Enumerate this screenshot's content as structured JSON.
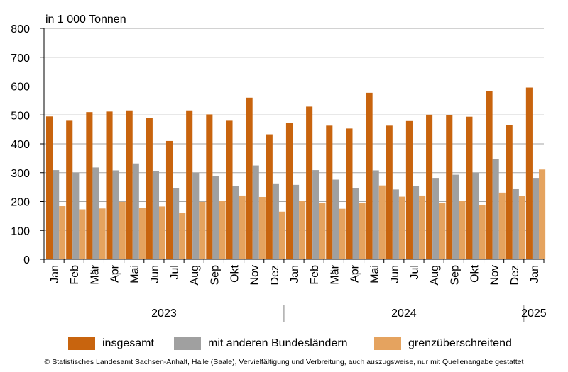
{
  "unit_label": "in 1 000 Tonnen",
  "footer": "© Statistisches Landesamt Sachsen-Anhalt, Halle (Saale), Vervielfältigung und Verbreitung, auch auszugsweise, nur mit Quellenangabe gestattet",
  "colors": {
    "insgesamt": "#c8640e",
    "bundeslaender": "#a0a0a0",
    "grenz": "#e5a35f"
  },
  "chart_data": {
    "type": "bar",
    "ylim": [
      0,
      800
    ],
    "yticks": [
      0,
      100,
      200,
      300,
      400,
      500,
      600,
      700,
      800
    ],
    "grid": true,
    "legend_position": "bottom",
    "categories": [
      "Jan",
      "Feb",
      "Mär",
      "Apr",
      "Mai",
      "Jun",
      "Jul",
      "Aug",
      "Sep",
      "Okt",
      "Nov",
      "Dez",
      "Jan",
      "Feb",
      "Mär",
      "Apr",
      "Mai",
      "Jun",
      "Jul",
      "Aug",
      "Sep",
      "Okt",
      "Nov",
      "Dez",
      "Jan"
    ],
    "years": [
      {
        "label": "2023",
        "start": 0,
        "count": 12
      },
      {
        "label": "2024",
        "start": 12,
        "count": 12
      },
      {
        "label": "2025",
        "start": 24,
        "count": 1
      }
    ],
    "series": [
      {
        "name": "insgesamt",
        "values": [
          495,
          480,
          510,
          512,
          516,
          490,
          410,
          516,
          502,
          480,
          560,
          433,
          473,
          529,
          463,
          453,
          577,
          463,
          479,
          501,
          499,
          494,
          584,
          464,
          595
        ]
      },
      {
        "name": "mit anderen Bundesländern",
        "values": [
          309,
          300,
          318,
          308,
          332,
          306,
          246,
          300,
          288,
          255,
          325,
          263,
          258,
          309,
          276,
          246,
          308,
          242,
          254,
          282,
          293,
          300,
          348,
          243,
          282
        ]
      },
      {
        "name": "grenzüberschreitend",
        "values": [
          184,
          173,
          176,
          199,
          179,
          183,
          161,
          199,
          203,
          221,
          216,
          165,
          202,
          196,
          175,
          195,
          256,
          217,
          221,
          195,
          202,
          188,
          231,
          220,
          311
        ]
      }
    ]
  }
}
